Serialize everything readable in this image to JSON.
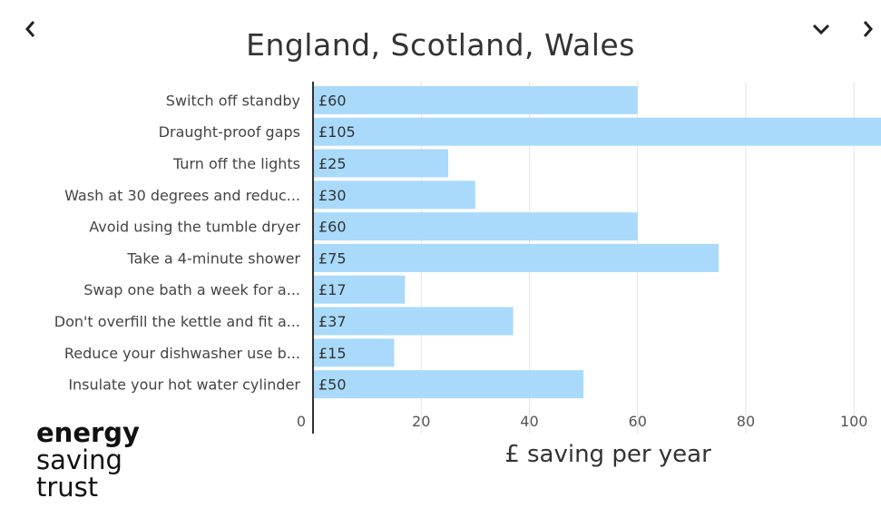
{
  "nav": {
    "prev_icon": "chevron-left-icon",
    "dropdown_icon": "chevron-down-icon",
    "next_icon": "chevron-right-icon"
  },
  "logo": {
    "line1": "energy",
    "line2": "saving",
    "line3": "trust"
  },
  "colors": {
    "bar": "#a9dafb",
    "grid": "#e3e3e3",
    "axis": "#333333"
  },
  "chart_data": {
    "type": "bar",
    "orientation": "horizontal",
    "title": "England, Scotland, Wales",
    "xlabel": "£ saving per year",
    "ylabel": "",
    "xlim": [
      0,
      105
    ],
    "xticks": [
      0,
      20,
      40,
      60,
      80,
      100
    ],
    "grid": true,
    "categories": [
      "Switch off standby",
      "Draught-proof gaps",
      "Turn off the lights",
      "Wash at 30 degrees and reduc...",
      "Avoid using the tumble dryer",
      "Take a 4-minute shower",
      "Swap one bath a week for a...",
      "Don't overfill the kettle and fit a...",
      "Reduce your dishwasher use b...",
      "Insulate your hot water cylinder"
    ],
    "values": [
      60,
      105,
      25,
      30,
      60,
      75,
      17,
      37,
      15,
      50
    ],
    "value_labels": [
      "£60",
      "£105",
      "£25",
      "£30",
      "£60",
      "£75",
      "£17",
      "£37",
      "£15",
      "£50"
    ]
  }
}
